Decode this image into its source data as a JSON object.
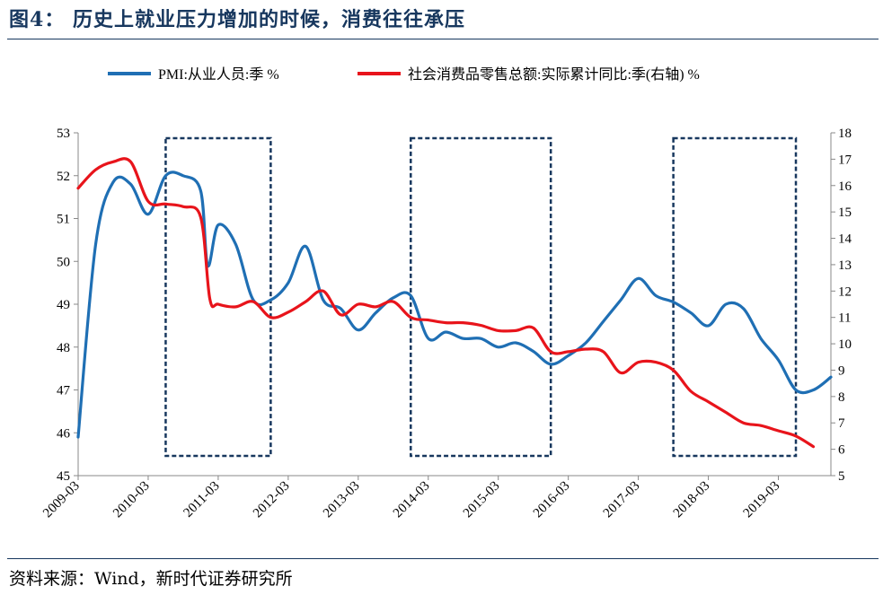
{
  "title": "图4：  历史上就业压力增加的时候，消费往往承压",
  "source": "资料来源：Wind，新时代证券研究所",
  "chart_data": {
    "type": "line",
    "series": [
      {
        "name": "PMI:从业人员:季 %",
        "axis": "left",
        "color": "#1f6fb4",
        "points": [
          [
            2009.0,
            45.9
          ],
          [
            2009.25,
            50.4
          ],
          [
            2009.5,
            51.85
          ],
          [
            2009.75,
            51.8
          ],
          [
            2010.0,
            51.1
          ],
          [
            2010.25,
            52.0
          ],
          [
            2010.5,
            52.0
          ],
          [
            2010.75,
            51.65
          ],
          [
            2010.85,
            49.9
          ],
          [
            2011.0,
            50.85
          ],
          [
            2011.25,
            50.4
          ],
          [
            2011.5,
            49.1
          ],
          [
            2011.75,
            49.1
          ],
          [
            2012.0,
            49.5
          ],
          [
            2012.25,
            50.35
          ],
          [
            2012.5,
            49.1
          ],
          [
            2012.75,
            48.9
          ],
          [
            2013.0,
            48.4
          ],
          [
            2013.25,
            48.8
          ],
          [
            2013.5,
            49.15
          ],
          [
            2013.75,
            49.2
          ],
          [
            2014.0,
            48.2
          ],
          [
            2014.25,
            48.35
          ],
          [
            2014.5,
            48.2
          ],
          [
            2014.75,
            48.2
          ],
          [
            2015.0,
            48.0
          ],
          [
            2015.25,
            48.1
          ],
          [
            2015.5,
            47.9
          ],
          [
            2015.75,
            47.6
          ],
          [
            2016.0,
            47.8
          ],
          [
            2016.25,
            48.1
          ],
          [
            2016.5,
            48.6
          ],
          [
            2016.75,
            49.1
          ],
          [
            2017.0,
            49.6
          ],
          [
            2017.25,
            49.2
          ],
          [
            2017.5,
            49.05
          ],
          [
            2017.75,
            48.8
          ],
          [
            2018.0,
            48.5
          ],
          [
            2018.25,
            49.0
          ],
          [
            2018.5,
            48.9
          ],
          [
            2018.75,
            48.2
          ],
          [
            2019.0,
            47.7
          ],
          [
            2019.25,
            47.0
          ],
          [
            2019.5,
            47.0
          ],
          [
            2019.75,
            47.3
          ]
        ]
      },
      {
        "name": "社会消费品零售总额:实际累计同比:季(右轴) %",
        "axis": "right",
        "color": "#e8141b",
        "points": [
          [
            2009.0,
            15.9
          ],
          [
            2009.25,
            16.6
          ],
          [
            2009.5,
            16.9
          ],
          [
            2009.75,
            16.9
          ],
          [
            2010.0,
            15.4
          ],
          [
            2010.25,
            15.3
          ],
          [
            2010.5,
            15.2
          ],
          [
            2010.75,
            14.8
          ],
          [
            2010.88,
            11.7
          ],
          [
            2011.0,
            11.5
          ],
          [
            2011.25,
            11.4
          ],
          [
            2011.5,
            11.6
          ],
          [
            2011.75,
            11.0
          ],
          [
            2012.0,
            11.2
          ],
          [
            2012.25,
            11.6
          ],
          [
            2012.5,
            12.0
          ],
          [
            2012.75,
            11.1
          ],
          [
            2013.0,
            11.5
          ],
          [
            2013.25,
            11.4
          ],
          [
            2013.5,
            11.6
          ],
          [
            2013.75,
            11.0
          ],
          [
            2014.0,
            10.9
          ],
          [
            2014.25,
            10.8
          ],
          [
            2014.5,
            10.8
          ],
          [
            2014.75,
            10.7
          ],
          [
            2015.0,
            10.5
          ],
          [
            2015.25,
            10.5
          ],
          [
            2015.5,
            10.6
          ],
          [
            2015.75,
            9.7
          ],
          [
            2016.0,
            9.7
          ],
          [
            2016.25,
            9.8
          ],
          [
            2016.5,
            9.7
          ],
          [
            2016.75,
            8.9
          ],
          [
            2017.0,
            9.3
          ],
          [
            2017.25,
            9.3
          ],
          [
            2017.5,
            9.0
          ],
          [
            2017.75,
            8.2
          ],
          [
            2018.0,
            7.8
          ],
          [
            2018.25,
            7.4
          ],
          [
            2018.5,
            7.0
          ],
          [
            2018.75,
            6.9
          ],
          [
            2019.0,
            6.7
          ],
          [
            2019.25,
            6.5
          ],
          [
            2019.5,
            6.1
          ]
        ]
      }
    ],
    "x_range": [
      2009.0,
      2019.75
    ],
    "x_tick_labels": [
      "2009-03",
      "2010-03",
      "2011-03",
      "2012-03",
      "2013-03",
      "2014-03",
      "2015-03",
      "2016-03",
      "2017-03",
      "2018-03",
      "2019-03"
    ],
    "x_tick_values": [
      2009,
      2010,
      2011,
      2012,
      2013,
      2014,
      2015,
      2016,
      2017,
      2018,
      2019
    ],
    "y_left": {
      "min": 45,
      "max": 53,
      "ticks": [
        45,
        46,
        47,
        48,
        49,
        50,
        51,
        52,
        53
      ]
    },
    "y_right": {
      "min": 5,
      "max": 18,
      "ticks": [
        5,
        6,
        7,
        8,
        9,
        10,
        11,
        12,
        13,
        14,
        15,
        16,
        17,
        18
      ]
    },
    "highlight_boxes": [
      {
        "x_start": 2010.25,
        "x_end": 2011.75
      },
      {
        "x_start": 2013.75,
        "x_end": 2015.75
      },
      {
        "x_start": 2017.5,
        "x_end": 2019.25
      }
    ],
    "grid": false,
    "legend_position": "top"
  }
}
